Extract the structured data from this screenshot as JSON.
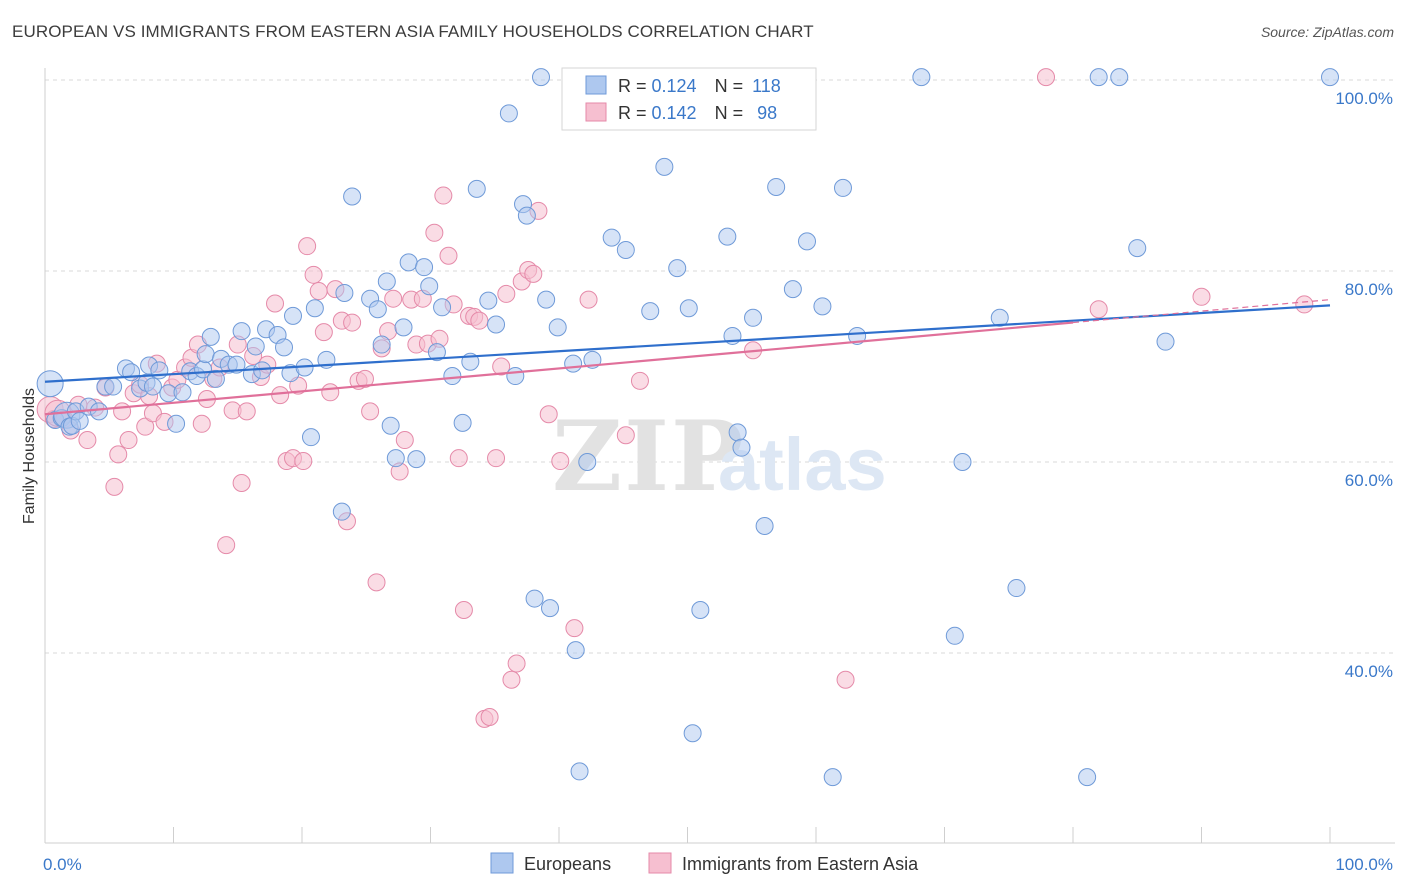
{
  "title": "EUROPEAN VS IMMIGRANTS FROM EASTERN ASIA FAMILY HOUSEHOLDS CORRELATION CHART",
  "source": "Source: ZipAtlas.com",
  "watermark": {
    "zip": "ZIP",
    "atlas": "atlas"
  },
  "colors": {
    "blue_fill": "#aec8ef",
    "blue_stroke": "#6f9ad8",
    "blue_line": "#2f6fcc",
    "pink_fill": "#f6bfd0",
    "pink_stroke": "#e58aa9",
    "pink_line": "#e0709a",
    "grid": "#d8d8d8",
    "tick_text": "#3a78c9"
  },
  "legend": {
    "series": [
      {
        "r_label": "R = ",
        "r_value": "0.124",
        "n_label": "N = ",
        "n_value": "118"
      },
      {
        "r_label": "R = ",
        "r_value": "0.142",
        "n_label": "N = ",
        "n_value": " 98"
      }
    ]
  },
  "chart_data": {
    "type": "scatter",
    "title": "EUROPEAN VS IMMIGRANTS FROM EASTERN ASIA FAMILY HOUSEHOLDS CORRELATION CHART",
    "xlabel": "",
    "ylabel": "Family Households",
    "xlim": [
      0,
      100
    ],
    "ylim": [
      18,
      105
    ],
    "x_tick_labels": [
      "0.0%",
      "100.0%"
    ],
    "y_ticks": [
      40,
      60,
      80,
      100
    ],
    "y_tick_labels": [
      "40.0%",
      "60.0%",
      "80.0%",
      "100.0%"
    ],
    "grid": true,
    "legend_position": "top-center",
    "series": [
      {
        "name": "Europeans",
        "color": "#aec8ef",
        "trend": {
          "x": [
            0,
            100
          ],
          "y": [
            68.4,
            76.4
          ]
        },
        "points": [
          [
            0.4,
            68.2
          ],
          [
            0.8,
            64.4
          ],
          [
            1.3,
            64.6
          ],
          [
            1.7,
            64.9
          ],
          [
            1.9,
            63.7
          ],
          [
            2.1,
            63.8
          ],
          [
            2.4,
            65.3
          ],
          [
            2.7,
            64.3
          ],
          [
            3.4,
            65.8
          ],
          [
            4.2,
            65.3
          ],
          [
            4.7,
            67.9
          ],
          [
            5.3,
            67.9
          ],
          [
            6.3,
            69.8
          ],
          [
            6.7,
            69.4
          ],
          [
            7.4,
            67.7
          ],
          [
            7.9,
            68.3
          ],
          [
            8.1,
            70.1
          ],
          [
            8.4,
            67.9
          ],
          [
            8.9,
            69.6
          ],
          [
            9.6,
            67.2
          ],
          [
            10.2,
            64.0
          ],
          [
            10.7,
            67.3
          ],
          [
            11.3,
            69.5
          ],
          [
            11.8,
            69.0
          ],
          [
            12.3,
            69.7
          ],
          [
            12.5,
            71.3
          ],
          [
            12.9,
            73.1
          ],
          [
            13.3,
            68.7
          ],
          [
            13.7,
            70.8
          ],
          [
            14.3,
            70.2
          ],
          [
            14.9,
            70.2
          ],
          [
            15.3,
            73.7
          ],
          [
            16.1,
            69.2
          ],
          [
            16.4,
            72.1
          ],
          [
            16.9,
            69.6
          ],
          [
            17.2,
            73.9
          ],
          [
            18.1,
            73.3
          ],
          [
            18.6,
            72.0
          ],
          [
            19.1,
            69.3
          ],
          [
            19.3,
            75.3
          ],
          [
            20.2,
            69.9
          ],
          [
            20.7,
            62.6
          ],
          [
            21.0,
            76.1
          ],
          [
            21.9,
            70.7
          ],
          [
            23.1,
            54.8
          ],
          [
            23.3,
            77.7
          ],
          [
            23.9,
            87.8
          ],
          [
            25.3,
            77.1
          ],
          [
            25.9,
            76.0
          ],
          [
            26.2,
            72.3
          ],
          [
            26.6,
            78.9
          ],
          [
            26.9,
            63.8
          ],
          [
            27.3,
            60.4
          ],
          [
            27.9,
            74.1
          ],
          [
            28.3,
            80.9
          ],
          [
            28.9,
            60.3
          ],
          [
            29.5,
            80.4
          ],
          [
            29.9,
            78.4
          ],
          [
            30.5,
            71.5
          ],
          [
            30.9,
            76.2
          ],
          [
            31.7,
            69.0
          ],
          [
            32.5,
            64.1
          ],
          [
            33.1,
            70.5
          ],
          [
            33.6,
            88.6
          ],
          [
            34.5,
            76.9
          ],
          [
            35.1,
            74.4
          ],
          [
            36.1,
            96.5
          ],
          [
            36.6,
            69.0
          ],
          [
            37.2,
            87.0
          ],
          [
            37.5,
            85.8
          ],
          [
            38.1,
            45.7
          ],
          [
            38.6,
            100.3
          ],
          [
            39.0,
            77.0
          ],
          [
            39.3,
            44.7
          ],
          [
            39.9,
            74.1
          ],
          [
            41.1,
            70.3
          ],
          [
            41.3,
            40.3
          ],
          [
            41.6,
            27.6
          ],
          [
            42.2,
            60.0
          ],
          [
            42.6,
            70.7
          ],
          [
            44.1,
            83.5
          ],
          [
            45.2,
            82.2
          ],
          [
            47.1,
            75.8
          ],
          [
            48.2,
            90.9
          ],
          [
            49.2,
            80.3
          ],
          [
            50.1,
            76.1
          ],
          [
            50.4,
            31.6
          ],
          [
            51.0,
            44.5
          ],
          [
            52.2,
            95.9
          ],
          [
            53.1,
            83.6
          ],
          [
            53.5,
            73.2
          ],
          [
            53.9,
            63.1
          ],
          [
            54.2,
            61.5
          ],
          [
            55.1,
            75.1
          ],
          [
            56.0,
            53.3
          ],
          [
            56.9,
            88.8
          ],
          [
            58.2,
            78.1
          ],
          [
            59.3,
            83.1
          ],
          [
            60.5,
            76.3
          ],
          [
            61.3,
            27.0
          ],
          [
            62.1,
            88.7
          ],
          [
            63.2,
            73.2
          ],
          [
            68.2,
            100.3
          ],
          [
            70.8,
            41.8
          ],
          [
            71.4,
            60.0
          ],
          [
            74.3,
            75.1
          ],
          [
            75.6,
            46.8
          ],
          [
            81.1,
            27.0
          ],
          [
            82.0,
            100.3
          ],
          [
            83.6,
            100.3
          ],
          [
            85.0,
            82.4
          ],
          [
            87.2,
            72.6
          ],
          [
            100.0,
            100.3
          ]
        ]
      },
      {
        "name": "Immigrants from Eastern Asia",
        "color": "#f6bfd0",
        "trend": {
          "x": [
            0,
            80
          ],
          "y": [
            65.0,
            74.6
          ]
        },
        "trend_dashed": {
          "x": [
            80,
            100
          ],
          "y": [
            74.6,
            77.0
          ]
        },
        "points": [
          [
            0.4,
            65.5
          ],
          [
            0.7,
            64.5
          ],
          [
            1.0,
            65.1
          ],
          [
            1.5,
            64.5
          ],
          [
            2.0,
            63.3
          ],
          [
            2.6,
            66.0
          ],
          [
            3.3,
            62.3
          ],
          [
            3.9,
            65.7
          ],
          [
            4.7,
            67.8
          ],
          [
            5.4,
            57.4
          ],
          [
            5.7,
            60.8
          ],
          [
            6.0,
            65.3
          ],
          [
            6.5,
            62.3
          ],
          [
            6.9,
            67.2
          ],
          [
            7.4,
            68.1
          ],
          [
            7.8,
            63.7
          ],
          [
            8.1,
            66.9
          ],
          [
            8.4,
            65.1
          ],
          [
            8.7,
            70.3
          ],
          [
            9.3,
            64.2
          ],
          [
            9.9,
            67.8
          ],
          [
            10.3,
            68.6
          ],
          [
            10.9,
            69.9
          ],
          [
            11.4,
            70.9
          ],
          [
            11.9,
            72.3
          ],
          [
            12.2,
            64.0
          ],
          [
            12.6,
            66.6
          ],
          [
            13.1,
            68.7
          ],
          [
            13.6,
            69.9
          ],
          [
            14.1,
            51.3
          ],
          [
            14.6,
            65.4
          ],
          [
            15.0,
            72.3
          ],
          [
            15.3,
            57.8
          ],
          [
            15.7,
            65.3
          ],
          [
            16.2,
            71.1
          ],
          [
            16.8,
            68.9
          ],
          [
            17.3,
            70.2
          ],
          [
            17.9,
            76.6
          ],
          [
            18.3,
            67.0
          ],
          [
            18.8,
            60.1
          ],
          [
            19.3,
            60.4
          ],
          [
            19.7,
            68.0
          ],
          [
            20.1,
            60.1
          ],
          [
            20.4,
            82.6
          ],
          [
            20.9,
            79.6
          ],
          [
            21.3,
            77.9
          ],
          [
            21.7,
            73.6
          ],
          [
            22.2,
            67.3
          ],
          [
            22.6,
            78.1
          ],
          [
            23.1,
            74.8
          ],
          [
            23.5,
            53.8
          ],
          [
            23.9,
            74.6
          ],
          [
            24.4,
            68.5
          ],
          [
            24.9,
            68.7
          ],
          [
            25.3,
            65.3
          ],
          [
            25.8,
            47.4
          ],
          [
            26.2,
            71.9
          ],
          [
            26.7,
            73.7
          ],
          [
            27.1,
            77.1
          ],
          [
            27.6,
            59.0
          ],
          [
            28.0,
            62.3
          ],
          [
            28.5,
            77.0
          ],
          [
            28.9,
            72.3
          ],
          [
            29.4,
            77.1
          ],
          [
            29.8,
            72.4
          ],
          [
            30.3,
            84.0
          ],
          [
            30.7,
            72.9
          ],
          [
            31.0,
            87.9
          ],
          [
            31.4,
            81.6
          ],
          [
            31.8,
            76.5
          ],
          [
            32.2,
            60.4
          ],
          [
            32.6,
            44.5
          ],
          [
            33.0,
            75.3
          ],
          [
            33.4,
            75.2
          ],
          [
            33.8,
            74.8
          ],
          [
            34.2,
            33.1
          ],
          [
            34.6,
            33.3
          ],
          [
            35.1,
            60.4
          ],
          [
            35.5,
            70.0
          ],
          [
            35.9,
            77.6
          ],
          [
            36.3,
            37.2
          ],
          [
            36.7,
            38.9
          ],
          [
            37.1,
            78.9
          ],
          [
            37.6,
            80.1
          ],
          [
            38.0,
            79.7
          ],
          [
            38.4,
            86.3
          ],
          [
            39.2,
            65.0
          ],
          [
            40.1,
            60.1
          ],
          [
            41.2,
            42.6
          ],
          [
            42.3,
            77.0
          ],
          [
            45.2,
            62.8
          ],
          [
            46.3,
            68.5
          ],
          [
            55.1,
            71.7
          ],
          [
            62.3,
            37.2
          ],
          [
            77.9,
            100.3
          ],
          [
            82.0,
            76.0
          ],
          [
            90.0,
            77.3
          ],
          [
            98.0,
            76.5
          ]
        ]
      }
    ]
  },
  "axes": {
    "x_left_label": "0.0%",
    "x_right_label": "100.0%",
    "y_label": "Family Households",
    "y_tick_labels": [
      "100.0%",
      "80.0%",
      "60.0%",
      "40.0%"
    ]
  },
  "bottom_legend": {
    "items": [
      {
        "label": "Europeans"
      },
      {
        "label": "Immigrants from Eastern Asia"
      }
    ]
  }
}
